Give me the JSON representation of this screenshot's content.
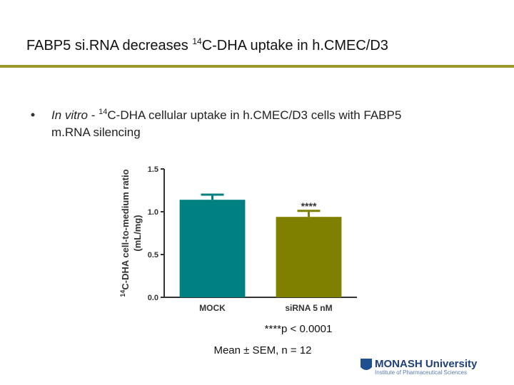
{
  "title": [
    "FABP5 si.RNA decreases ",
    "14",
    "C-DHA uptake in h.CMEC/D3"
  ],
  "bullet": [
    "In vitro",
    " - ",
    "14",
    "C-DHA cellular uptake in h.CMEC/D3 cells with FABP5",
    "m.RNA silencing"
  ],
  "chart_data": {
    "type": "bar",
    "y_label": [
      "14",
      "C-DHA cell-to-medium ratio",
      "(mL/mg)"
    ],
    "categories": [
      "MOCK",
      "siRNA 5 nM"
    ],
    "values": [
      1.14,
      0.94
    ],
    "errors": [
      0.06,
      0.07
    ],
    "colors": [
      "#008080",
      "#808000"
    ],
    "annotation": "****",
    "ylim": [
      0,
      1.5
    ],
    "yticks": [
      {
        "value": 0,
        "label": "0.0"
      },
      0.5,
      {
        "value": 1,
        "label": "1.0"
      },
      1.5
    ]
  },
  "footnotes": [
    "****p < 0.0001",
    "Mean ± SEM, n = 12"
  ],
  "logo": {
    "name": "MONASH University",
    "subtitle": "Institute of Pharmaceutical Sciences"
  }
}
